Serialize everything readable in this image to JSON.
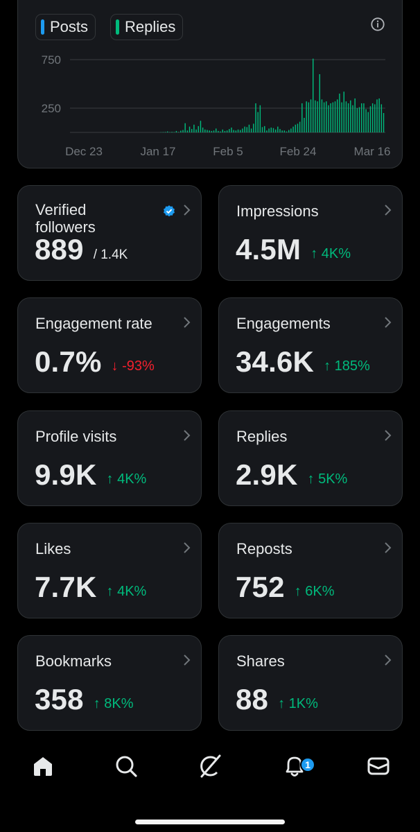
{
  "legend": {
    "posts": "Posts",
    "replies": "Replies"
  },
  "colors": {
    "posts": "#1d9bf0",
    "replies": "#00ba7c",
    "up": "#00ba7c",
    "down": "#f4212e",
    "accent": "#1d9bf0"
  },
  "chart_data": {
    "type": "bar",
    "title": "",
    "xlabel": "",
    "ylabel": "",
    "y_ticks": [
      250,
      750
    ],
    "ylim": [
      0,
      800
    ],
    "x_ticks": [
      "Dec 23",
      "Jan 17",
      "Feb 5",
      "Feb 24",
      "Mar 16"
    ],
    "grid": true,
    "series": [
      {
        "name": "Replies",
        "values": [
          0,
          0,
          0,
          0,
          0,
          0,
          0,
          0,
          0,
          0,
          0,
          0,
          0,
          0,
          0,
          0,
          0,
          0,
          0,
          0,
          0,
          0,
          0,
          0,
          0,
          0,
          0,
          0,
          0,
          0,
          0,
          0,
          0,
          0,
          0,
          0,
          0,
          0,
          0,
          0,
          0,
          3,
          4,
          5,
          10,
          4,
          6,
          4,
          15,
          5,
          18,
          25,
          95,
          20,
          60,
          35,
          80,
          30,
          65,
          120,
          50,
          30,
          25,
          20,
          15,
          20,
          40,
          15,
          10,
          30,
          15,
          20,
          35,
          50,
          25,
          20,
          30,
          25,
          40,
          60,
          55,
          80,
          40,
          90,
          300,
          210,
          280,
          55,
          65,
          20,
          40,
          50,
          45,
          30,
          60,
          35,
          20,
          20,
          10,
          25,
          40,
          60,
          80,
          90,
          110,
          300,
          150,
          320,
          310,
          340,
          760,
          330,
          320,
          600,
          340,
          310,
          320,
          280,
          300,
          310,
          320,
          340,
          400,
          310,
          420,
          320,
          300,
          330,
          280,
          350,
          250,
          260,
          300,
          300,
          240,
          210,
          270,
          300,
          290,
          340,
          350,
          290,
          200
        ]
      }
    ]
  },
  "stats": [
    {
      "label": "Verified followers",
      "value": "889",
      "suffix": "/ 1.4K",
      "change": "",
      "dir": "none",
      "verified": true
    },
    {
      "label": "Impressions",
      "value": "4.5M",
      "change": "↑ 4K%",
      "dir": "up"
    },
    {
      "label": "Engagement rate",
      "value": "0.7%",
      "change": "↓ -93%",
      "dir": "down"
    },
    {
      "label": "Engagements",
      "value": "34.6K",
      "change": "↑ 185%",
      "dir": "up"
    },
    {
      "label": "Profile visits",
      "value": "9.9K",
      "change": "↑ 4K%",
      "dir": "up"
    },
    {
      "label": "Replies",
      "value": "2.9K",
      "change": "↑ 5K%",
      "dir": "up"
    },
    {
      "label": "Likes",
      "value": "7.7K",
      "change": "↑ 4K%",
      "dir": "up"
    },
    {
      "label": "Reposts",
      "value": "752",
      "change": "↑ 6K%",
      "dir": "up"
    },
    {
      "label": "Bookmarks",
      "value": "358",
      "change": "↑ 8K%",
      "dir": "up"
    },
    {
      "label": "Shares",
      "value": "88",
      "change": "↑ 1K%",
      "dir": "up"
    }
  ],
  "nav": {
    "home": "home-icon",
    "search": "search-icon",
    "grok": "grok-icon",
    "notifications": "bell-icon",
    "messages": "mail-icon",
    "notification_count": "1"
  }
}
